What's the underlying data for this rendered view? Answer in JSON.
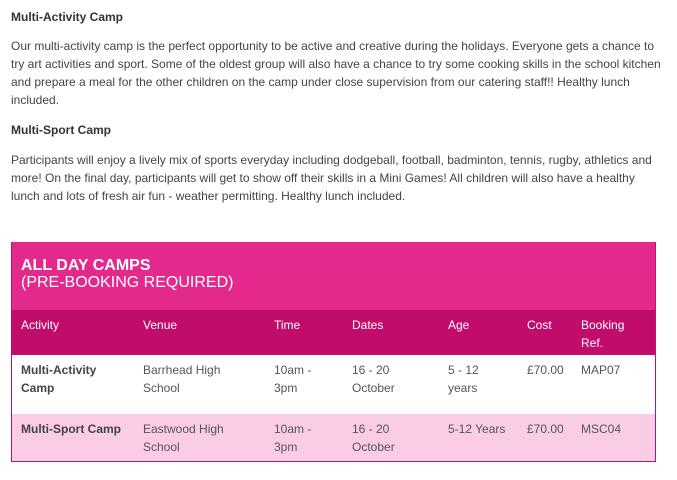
{
  "sections": [
    {
      "heading": "Multi-Activity Camp",
      "text": "Our multi-activity camp is the perfect opportunity to be active and creative during the holidays. Everyone gets a chance to try art activities and sport. Some of the oldest group will also have a chance to try some cooking skills in the school kitchen and prepare a meal for the other children on the camp under close supervision from our catering staff!! Healthy lunch included."
    },
    {
      "heading": "Multi-Sport Camp",
      "text": "Participants will enjoy a lively mix of sports everyday including dodgeball, football, badminton, tennis, rugby, athletics and more! On the final day, participants will get to show off their skills in a Mini Games! All children will also have a healthy lunch and lots of fresh air fun - weather permitting.  Healthy lunch included."
    }
  ],
  "table": {
    "title": "ALL DAY CAMPS",
    "subtitle": "(PRE-BOOKING REQUIRED)",
    "headers": [
      "Activity",
      "Venue",
      "Time",
      "Dates",
      "Age",
      "Cost",
      "Booking Ref."
    ],
    "rows": [
      [
        "Multi-Activity Camp",
        "Barrhead High School",
        "10am - 3pm",
        "16 - 20 October",
        "5 - 12 years",
        "£70.00",
        "MAP07"
      ],
      [
        "Multi-Sport Camp",
        "Eastwood High School",
        "10am - 3pm",
        "16 - 20 October",
        "5-12 Years",
        "£70.00",
        "MSC04"
      ]
    ]
  },
  "colors": {
    "band": "#e32a8c",
    "header": "#c20c6b",
    "alt_row": "#facce6"
  }
}
